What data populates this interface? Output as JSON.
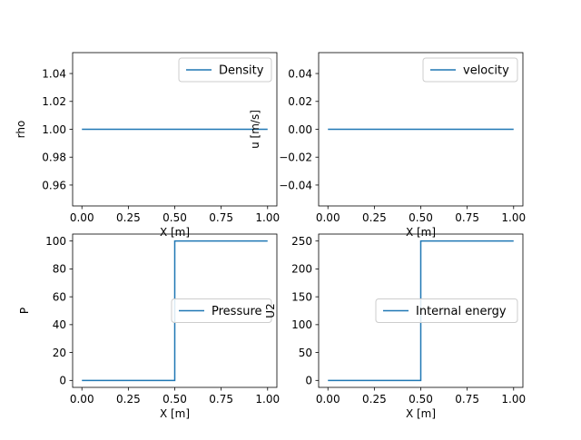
{
  "chart_data": [
    {
      "type": "line",
      "title": "",
      "xlabel": "X [m]",
      "ylabel": "rho",
      "xlim": [
        -0.05,
        1.05
      ],
      "ylim": [
        0.945,
        1.055
      ],
      "xticks": [
        0.0,
        0.25,
        0.5,
        0.75,
        1.0
      ],
      "xtick_labels": [
        "0.00",
        "0.25",
        "0.50",
        "0.75",
        "1.00"
      ],
      "yticks": [
        0.96,
        0.98,
        1.0,
        1.02,
        1.04
      ],
      "ytick_labels": [
        "0.96",
        "0.98",
        "1.00",
        "1.02",
        "1.04"
      ],
      "legend_position": "upper right",
      "grid": false,
      "series": [
        {
          "name": "Density",
          "color": "#1f77b4",
          "x": [
            0.0,
            1.0
          ],
          "y": [
            1.0,
            1.0
          ]
        }
      ]
    },
    {
      "type": "line",
      "title": "",
      "xlabel": "X [m]",
      "ylabel": "u [m/s]",
      "xlim": [
        -0.05,
        1.05
      ],
      "ylim": [
        -0.055,
        0.055
      ],
      "xticks": [
        0.0,
        0.25,
        0.5,
        0.75,
        1.0
      ],
      "xtick_labels": [
        "0.00",
        "0.25",
        "0.50",
        "0.75",
        "1.00"
      ],
      "yticks": [
        -0.04,
        -0.02,
        0.0,
        0.02,
        0.04
      ],
      "ytick_labels": [
        "−0.04",
        "−0.02",
        "0.00",
        "0.02",
        "0.04"
      ],
      "legend_position": "upper right",
      "grid": false,
      "series": [
        {
          "name": "velocity",
          "color": "#1f77b4",
          "x": [
            0.0,
            1.0
          ],
          "y": [
            0.0,
            0.0
          ]
        }
      ]
    },
    {
      "type": "line",
      "title": "",
      "xlabel": "X [m]",
      "ylabel": "P",
      "xlim": [
        -0.05,
        1.05
      ],
      "ylim": [
        -5,
        105
      ],
      "xticks": [
        0.0,
        0.25,
        0.5,
        0.75,
        1.0
      ],
      "xtick_labels": [
        "0.00",
        "0.25",
        "0.50",
        "0.75",
        "1.00"
      ],
      "yticks": [
        0,
        20,
        40,
        60,
        80,
        100
      ],
      "ytick_labels": [
        "0",
        "20",
        "40",
        "60",
        "80",
        "100"
      ],
      "legend_position": "center right",
      "grid": false,
      "series": [
        {
          "name": "Pressure",
          "color": "#1f77b4",
          "x": [
            0.0,
            0.5,
            0.5,
            1.0
          ],
          "y": [
            0,
            0,
            100,
            100
          ]
        }
      ]
    },
    {
      "type": "line",
      "title": "",
      "xlabel": "X [m]",
      "ylabel": "U2",
      "xlim": [
        -0.05,
        1.05
      ],
      "ylim": [
        -12.5,
        262.5
      ],
      "xticks": [
        0.0,
        0.25,
        0.5,
        0.75,
        1.0
      ],
      "xtick_labels": [
        "0.00",
        "0.25",
        "0.50",
        "0.75",
        "1.00"
      ],
      "yticks": [
        0,
        50,
        100,
        150,
        200,
        250
      ],
      "ytick_labels": [
        "0",
        "50",
        "100",
        "150",
        "200",
        "250"
      ],
      "legend_position": "center right",
      "grid": false,
      "series": [
        {
          "name": "Internal energy",
          "color": "#1f77b4",
          "x": [
            0.0,
            0.5,
            0.5,
            1.0
          ],
          "y": [
            0,
            0,
            250,
            250
          ]
        }
      ]
    }
  ]
}
